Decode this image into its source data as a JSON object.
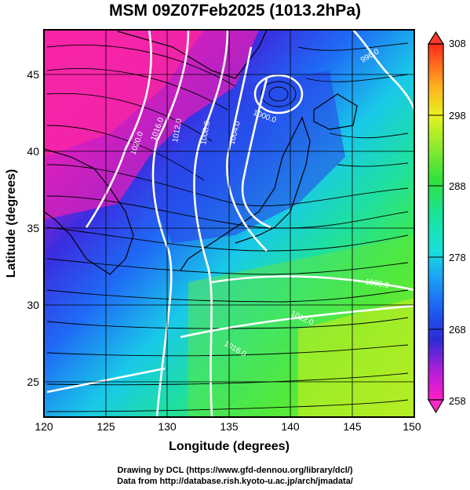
{
  "title": "MSM 09Z07Feb2025 (1013.2hPa)",
  "x_axis": {
    "label": "Longitude (degrees)",
    "range": [
      120,
      150
    ],
    "ticks": [
      "120",
      "125",
      "130",
      "135",
      "140",
      "145",
      "150"
    ]
  },
  "y_axis": {
    "label": "Latitude  (degrees)",
    "range": [
      22.4,
      47.6
    ],
    "ticks": [
      "25",
      "30",
      "35",
      "40",
      "45"
    ]
  },
  "colorbar": {
    "range": [
      258,
      308
    ],
    "ticks": [
      "258",
      "268",
      "278",
      "288",
      "298",
      "308"
    ]
  },
  "contour_labels": [
    "1020.0",
    "1016.0",
    "1012.0",
    "1008.0",
    "1004.0",
    "1000.0",
    "996.0",
    "1008.0",
    "1012.0",
    "1016.0"
  ],
  "credits": {
    "line1": "Drawing by DCL (https://www.gfd-dennou.org/library/dcl/)",
    "line2": "Data from http://database.rish.kyoto-u.ac.jp/arch/jmadata/"
  }
}
